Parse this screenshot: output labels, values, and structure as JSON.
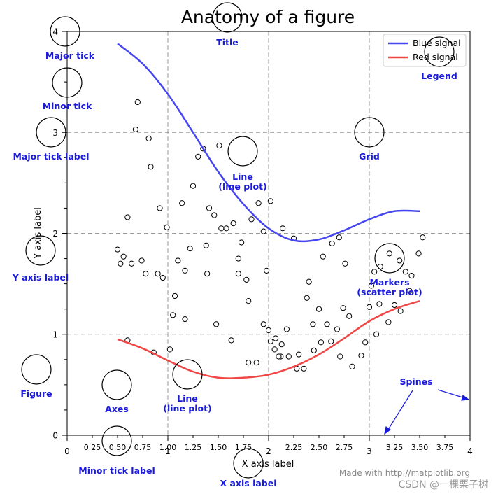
{
  "page": {
    "watermark": "Made with http://matplotlib.org",
    "credit": "CSDN @一棵栗子树"
  },
  "chart_data": {
    "type": "line",
    "title": "Anatomy of a figure",
    "xlabel": "X axis label",
    "ylabel": "Y axis label",
    "xlim": [
      0,
      4
    ],
    "ylim": [
      0,
      4
    ],
    "grid": true,
    "x_major_ticks": [
      "0",
      "1",
      "2",
      "3",
      "4"
    ],
    "x_minor_ticks": [
      "0.25",
      "0.50",
      "0.75",
      "1.00",
      "1.25",
      "1.50",
      "1.75",
      "2.25",
      "2.50",
      "2.75",
      "3.25",
      "3.50",
      "3.75"
    ],
    "y_major_ticks": [
      "0",
      "1",
      "2",
      "3",
      "4"
    ],
    "legend": {
      "position": "top-right",
      "entries": [
        {
          "name": "Blue signal",
          "color": "#4646f0"
        },
        {
          "name": "Red signal",
          "color": "#f04646"
        }
      ]
    },
    "series": [
      {
        "name": "Blue signal",
        "color": "#4646f0",
        "x": [
          0.5,
          0.75,
          1.0,
          1.25,
          1.5,
          1.75,
          2.0,
          2.25,
          2.5,
          2.75,
          3.0,
          3.25,
          3.5
        ],
        "y": [
          3.88,
          3.68,
          3.38,
          3.0,
          2.61,
          2.29,
          2.05,
          1.93,
          1.94,
          2.03,
          2.14,
          2.22,
          2.22
        ]
      },
      {
        "name": "Red signal",
        "color": "#f04646",
        "x": [
          0.5,
          0.75,
          1.0,
          1.25,
          1.5,
          1.75,
          2.0,
          2.25,
          2.5,
          2.75,
          3.0,
          3.25,
          3.5
        ],
        "y": [
          0.95,
          0.86,
          0.74,
          0.63,
          0.57,
          0.57,
          0.6,
          0.68,
          0.8,
          0.96,
          1.13,
          1.25,
          1.33
        ]
      }
    ],
    "scatter": {
      "name": "Markers",
      "x": [
        0.7,
        0.68,
        0.81,
        0.83,
        0.92,
        0.99,
        0.6,
        1.14,
        1.25,
        1.3,
        1.35,
        1.41,
        1.46,
        1.51,
        1.53,
        1.58,
        1.65,
        1.73,
        1.7,
        1.83,
        1.9,
        1.95,
        2.02,
        2.14,
        2.25,
        2.4,
        2.54,
        2.63,
        2.7,
        2.76,
        3.05,
        3.11,
        3.2,
        3.3,
        3.36,
        3.42,
        3.49,
        3.53,
        0.5,
        0.53,
        0.56,
        0.64,
        0.74,
        0.78,
        0.9,
        0.95,
        1.07,
        1.1,
        1.17,
        1.22,
        0.6,
        0.86,
        1.02,
        1.17,
        1.38,
        1.7,
        1.78,
        1.95,
        2.0,
        2.07,
        2.13,
        2.18,
        2.3,
        2.38,
        2.44,
        2.5,
        2.58,
        2.68,
        2.74,
        2.8,
        2.96,
        3.0,
        3.07,
        3.19,
        3.25,
        3.31,
        3.4,
        1.63,
        1.8,
        1.88,
        2.02,
        2.06,
        2.12,
        2.2,
        2.28,
        2.35,
        2.45,
        2.52,
        2.62,
        2.71,
        2.83,
        2.92,
        3.02,
        3.1,
        1.05,
        1.39,
        1.48,
        1.8,
        1.98,
        2.1
      ],
      "y": [
        3.3,
        3.03,
        2.94,
        2.66,
        2.25,
        2.06,
        2.16,
        2.3,
        2.47,
        2.76,
        2.84,
        2.25,
        2.18,
        2.87,
        2.05,
        2.05,
        2.1,
        1.91,
        1.6,
        2.14,
        2.3,
        2.02,
        2.32,
        2.05,
        1.95,
        1.52,
        1.77,
        1.9,
        1.96,
        1.7,
        1.62,
        1.67,
        1.8,
        1.73,
        1.62,
        1.58,
        1.8,
        1.96,
        1.84,
        1.7,
        1.77,
        1.7,
        1.73,
        1.6,
        1.6,
        1.56,
        1.38,
        1.73,
        1.63,
        1.85,
        0.94,
        0.82,
        0.85,
        1.15,
        1.88,
        1.75,
        1.54,
        1.1,
        1.04,
        0.96,
        0.9,
        1.05,
        0.8,
        1.36,
        1.1,
        1.25,
        1.1,
        1.05,
        1.26,
        1.18,
        0.92,
        1.27,
        1.0,
        1.12,
        1.29,
        1.23,
        1.43,
        0.94,
        0.72,
        0.72,
        0.93,
        0.85,
        0.78,
        0.78,
        0.66,
        0.66,
        0.84,
        0.92,
        0.93,
        0.78,
        0.68,
        0.79,
        1.48,
        1.3,
        1.19,
        1.6,
        1.1,
        1.33,
        1.63,
        0.78
      ]
    },
    "annotations": [
      {
        "key": "major-tick",
        "text": "Major tick"
      },
      {
        "key": "minor-tick",
        "text": "Minor tick"
      },
      {
        "key": "major-tick-label",
        "text": "Major tick label"
      },
      {
        "key": "y-axis-label",
        "text": "Y axis label"
      },
      {
        "key": "figure",
        "text": "Figure"
      },
      {
        "key": "axes",
        "text": "Axes"
      },
      {
        "key": "line-lower",
        "text": "Line\n(line plot)"
      },
      {
        "key": "minor-tick-label",
        "text": "Minor tick label"
      },
      {
        "key": "x-axis-label",
        "text": "X axis label"
      },
      {
        "key": "title",
        "text": "Title"
      },
      {
        "key": "line-upper",
        "text": "Line\n(line plot)"
      },
      {
        "key": "grid",
        "text": "Grid"
      },
      {
        "key": "legend",
        "text": "Legend"
      },
      {
        "key": "markers",
        "text": "Markers\n(scatter plot)"
      },
      {
        "key": "spines",
        "text": "Spines"
      }
    ],
    "annotation_color": "#1a1adc"
  }
}
